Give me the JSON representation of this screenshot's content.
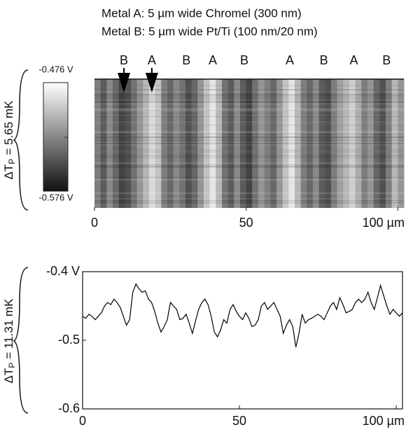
{
  "chart_data": [
    {
      "type": "heatmap",
      "title": [
        "Metal A: 5 µm wide Chromel (300 nm)",
        "Metal B: 5 µm wide Pt/Ti (100 nm/20 nm)"
      ],
      "ylabel": {
        "symbol": "ΔT",
        "subscript": "P",
        "text": "= 5.65 mK"
      },
      "stripe_labels": {
        "labels": [
          "B",
          "A",
          "B",
          "A",
          "B",
          "A",
          "B",
          "A",
          "B"
        ],
        "x": [
          9.7,
          18.9,
          30.3,
          39,
          49.4,
          64.4,
          75.6,
          85.5,
          96.3
        ],
        "arrows": [
          true,
          true,
          false,
          false,
          false,
          false,
          false,
          false,
          false
        ]
      },
      "x": [
        0,
        2,
        4,
        6,
        8,
        10,
        12,
        14,
        16,
        18,
        20,
        22,
        24,
        26,
        28,
        30,
        32,
        34,
        36,
        38,
        40,
        42,
        44,
        46,
        48,
        50,
        52,
        54,
        56,
        58,
        60,
        62,
        64,
        66,
        68,
        70,
        72,
        74,
        76,
        78,
        80,
        82,
        84,
        86,
        88,
        90,
        92,
        94,
        96,
        98,
        100
      ],
      "values": [
        -0.53,
        -0.545,
        -0.525,
        -0.54,
        -0.555,
        -0.55,
        -0.535,
        -0.52,
        -0.505,
        -0.49,
        -0.5,
        -0.53,
        -0.54,
        -0.525,
        -0.535,
        -0.55,
        -0.54,
        -0.52,
        -0.5,
        -0.485,
        -0.505,
        -0.535,
        -0.545,
        -0.525,
        -0.545,
        -0.555,
        -0.535,
        -0.52,
        -0.53,
        -0.54,
        -0.52,
        -0.5,
        -0.485,
        -0.505,
        -0.53,
        -0.54,
        -0.525,
        -0.545,
        -0.55,
        -0.53,
        -0.515,
        -0.505,
        -0.495,
        -0.51,
        -0.53,
        -0.52,
        -0.54,
        -0.55,
        -0.53,
        -0.505,
        -0.52
      ],
      "xlim": [
        0,
        102
      ],
      "xticks": [
        0,
        50,
        {
          "value": 100,
          "label": "100 µm"
        }
      ],
      "zlim": [
        -0.576,
        -0.476
      ],
      "zticks": [
        {
          "value": -0.476,
          "label": "-0.476 V"
        },
        {
          "value": -0.576,
          "label": "-0.576 V"
        }
      ]
    },
    {
      "type": "line",
      "ylabel": {
        "symbol": "ΔT",
        "subscript": "P",
        "text": "= 11.31 mK"
      },
      "x": [
        0,
        1,
        2,
        3,
        4,
        5,
        6,
        7,
        8,
        9,
        10,
        11,
        12,
        13,
        14,
        15,
        16,
        17,
        18,
        19,
        20,
        21,
        22,
        23,
        24,
        25,
        26,
        27,
        28,
        29,
        30,
        31,
        32,
        33,
        34,
        35,
        36,
        37,
        38,
        39,
        40,
        41,
        42,
        43,
        44,
        45,
        46,
        47,
        48,
        49,
        50,
        51,
        52,
        53,
        54,
        55,
        56,
        57,
        58,
        59,
        60,
        61,
        62,
        63,
        64,
        65,
        66,
        67,
        68,
        69,
        70,
        71,
        72,
        73,
        74,
        75,
        76,
        77,
        78,
        79,
        80,
        81,
        82,
        83,
        84,
        85,
        86,
        87,
        88,
        89,
        90,
        91,
        92,
        93,
        94,
        95,
        96,
        97,
        98,
        99,
        100,
        101,
        102
      ],
      "values": [
        -0.465,
        -0.468,
        -0.462,
        -0.465,
        -0.47,
        -0.465,
        -0.46,
        -0.45,
        -0.445,
        -0.448,
        -0.44,
        -0.445,
        -0.452,
        -0.465,
        -0.478,
        -0.47,
        -0.43,
        -0.418,
        -0.425,
        -0.43,
        -0.428,
        -0.44,
        -0.445,
        -0.458,
        -0.475,
        -0.488,
        -0.48,
        -0.47,
        -0.445,
        -0.45,
        -0.455,
        -0.47,
        -0.468,
        -0.462,
        -0.475,
        -0.49,
        -0.472,
        -0.455,
        -0.445,
        -0.44,
        -0.448,
        -0.465,
        -0.488,
        -0.495,
        -0.485,
        -0.47,
        -0.475,
        -0.455,
        -0.448,
        -0.458,
        -0.465,
        -0.47,
        -0.46,
        -0.468,
        -0.48,
        -0.478,
        -0.47,
        -0.45,
        -0.445,
        -0.455,
        -0.45,
        -0.445,
        -0.455,
        -0.465,
        -0.49,
        -0.478,
        -0.47,
        -0.48,
        -0.51,
        -0.49,
        -0.462,
        -0.475,
        -0.47,
        -0.468,
        -0.465,
        -0.462,
        -0.465,
        -0.47,
        -0.46,
        -0.45,
        -0.445,
        -0.455,
        -0.438,
        -0.448,
        -0.46,
        -0.458,
        -0.455,
        -0.445,
        -0.44,
        -0.445,
        -0.44,
        -0.43,
        -0.445,
        -0.455,
        -0.438,
        -0.42,
        -0.435,
        -0.45,
        -0.462,
        -0.455,
        -0.46,
        -0.465,
        -0.46
      ],
      "color": "#000000",
      "xlim": [
        0,
        102
      ],
      "xticks": [
        0,
        50,
        {
          "value": 100,
          "label": "100 µm"
        }
      ],
      "ylim": [
        -0.6,
        -0.4
      ],
      "yticks": [
        {
          "value": -0.4,
          "label": "-0.4 V"
        },
        -0.5,
        -0.6
      ]
    }
  ]
}
